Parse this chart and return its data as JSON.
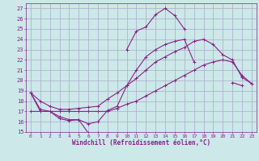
{
  "xlabel": "Windchill (Refroidissement éolien,°C)",
  "bg_color": "#cce8e8",
  "grid_color": "#aaaacc",
  "line_color": "#882288",
  "xmin": 0,
  "xmax": 23,
  "ymin": 15,
  "ymax": 27,
  "series": [
    [
      18.8,
      17.0,
      17.0,
      16.3,
      16.1,
      16.2,
      14.9,
      14.9,
      null,
      null,
      23.0,
      24.8,
      25.2,
      26.4,
      27.0,
      26.3,
      25.0,
      null,
      null,
      null,
      null,
      null,
      null,
      null
    ],
    [
      18.8,
      17.2,
      17.0,
      16.5,
      16.2,
      16.2,
      15.8,
      16.0,
      17.1,
      17.5,
      19.5,
      21.0,
      22.3,
      23.0,
      23.5,
      23.8,
      24.0,
      21.8,
      null,
      null,
      null,
      19.8,
      19.5,
      null
    ],
    [
      17.0,
      17.0,
      17.0,
      17.0,
      17.0,
      17.0,
      17.0,
      17.0,
      17.0,
      17.3,
      17.7,
      18.0,
      18.5,
      19.0,
      19.5,
      20.0,
      20.5,
      21.0,
      21.5,
      21.8,
      22.0,
      21.8,
      20.5,
      19.7
    ],
    [
      18.8,
      18.0,
      17.5,
      17.2,
      17.2,
      17.3,
      17.4,
      17.5,
      18.2,
      18.8,
      19.5,
      20.2,
      21.0,
      21.8,
      22.3,
      22.8,
      23.2,
      23.8,
      24.0,
      23.5,
      22.5,
      22.0,
      20.3,
      19.7
    ]
  ]
}
